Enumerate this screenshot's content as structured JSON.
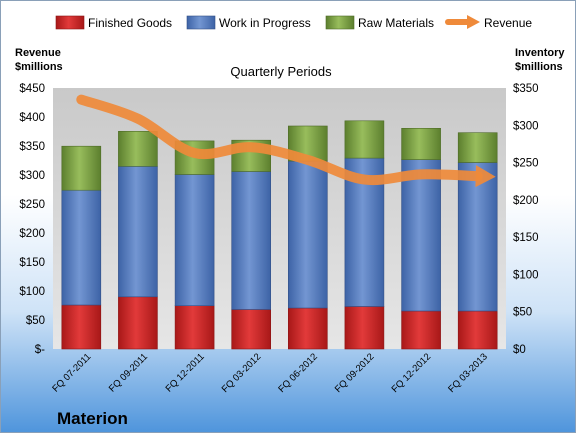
{
  "chart_data": {
    "type": "bar",
    "stacked": true,
    "title": "Quarterly Periods",
    "company": "Materion",
    "categories": [
      "FQ 07-2011",
      "FQ 09-2011",
      "FQ 12-2011",
      "FQ 03-2012",
      "FQ 06-2012",
      "FQ 09-2012",
      "FQ 12-2012",
      "FQ 03-2013"
    ],
    "series": [
      {
        "name": "Finished Goods",
        "axis": "right",
        "color": "#d42a2a",
        "values": [
          59,
          70,
          58,
          53,
          55,
          57,
          51,
          51
        ]
      },
      {
        "name": "Work in Progress",
        "axis": "right",
        "color": "#5b82c4",
        "values": [
          154,
          175,
          176,
          185,
          197,
          199,
          203,
          199
        ]
      },
      {
        "name": "Raw Materials",
        "axis": "right",
        "color": "#7ea34a",
        "values": [
          59,
          47,
          45,
          42,
          47,
          50,
          42,
          40
        ]
      }
    ],
    "line_series": {
      "name": "Revenue",
      "axis": "left",
      "color": "#ef8a3a",
      "values": [
        430,
        397,
        338,
        348,
        326,
        292,
        301,
        298
      ]
    },
    "y_left": {
      "label_line1": "Revenue",
      "label_line2": "$millions",
      "ylim": [
        0,
        450
      ],
      "ticks": [
        "$-",
        "$50",
        "$100",
        "$150",
        "$200",
        "$250",
        "$300",
        "$350",
        "$400",
        "$450"
      ]
    },
    "y_right": {
      "label_line1": "Inventory",
      "label_line2": "$millions",
      "ylim": [
        0,
        350
      ],
      "ticks": [
        "$0",
        "$50",
        "$100",
        "$150",
        "$200",
        "$250",
        "$300",
        "$350"
      ]
    },
    "grid": false,
    "legend": "top"
  }
}
